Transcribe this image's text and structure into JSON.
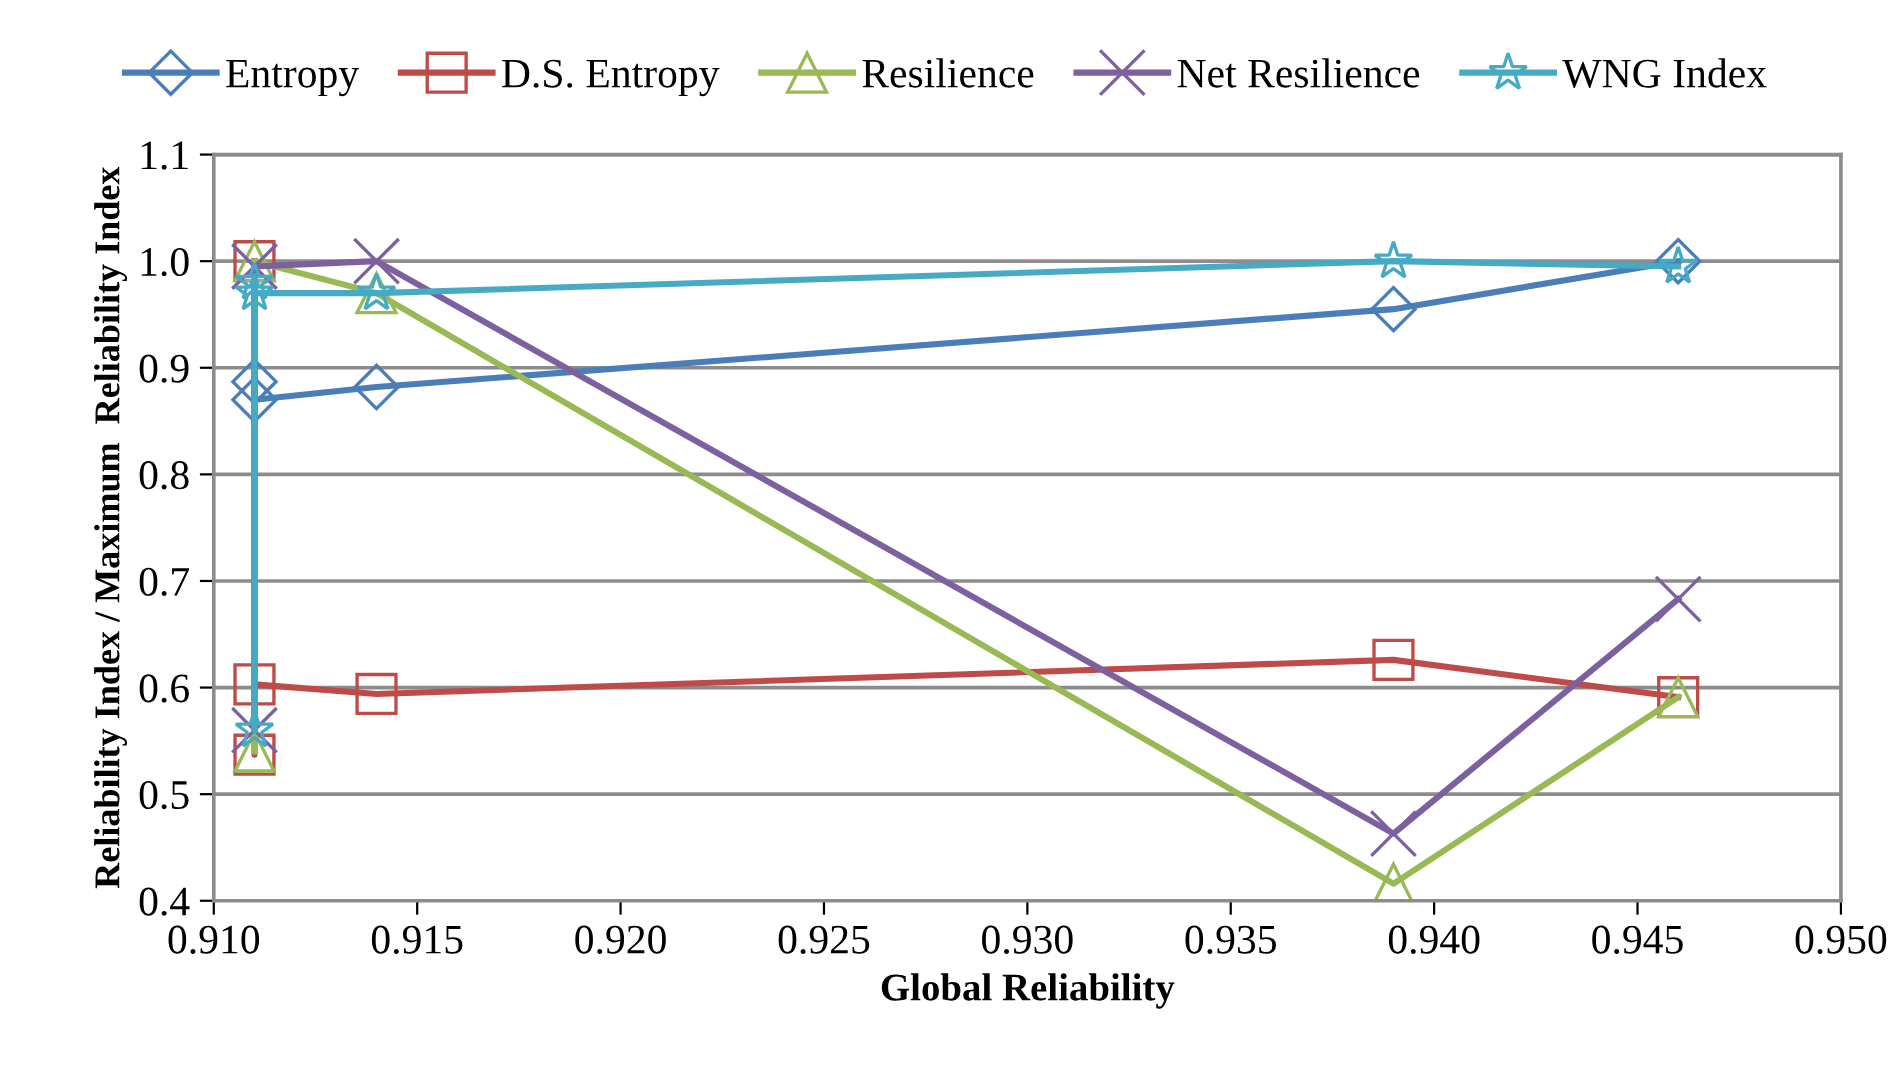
{
  "chart_data": {
    "type": "line",
    "xlabel": "Global Reliability",
    "ylabel": "Reliability Index / Maximum  Reliability Index",
    "xlim": [
      0.91,
      0.95
    ],
    "xticks": [
      {
        "value": 0.91,
        "label": "0.910"
      },
      {
        "value": 0.915,
        "label": "0.915"
      },
      {
        "value": 0.92,
        "label": "0.920"
      },
      {
        "value": 0.925,
        "label": "0.925"
      },
      {
        "value": 0.93,
        "label": "0.930"
      },
      {
        "value": 0.935,
        "label": "0.935"
      },
      {
        "value": 0.94,
        "label": "0.940"
      },
      {
        "value": 0.945,
        "label": "0.945"
      },
      {
        "value": 0.95,
        "label": "0.950"
      }
    ],
    "ylim": [
      0.4,
      1.1
    ],
    "yticks": [
      {
        "value": 0.4,
        "label": "0.4"
      },
      {
        "value": 0.5,
        "label": "0.5"
      },
      {
        "value": 0.6,
        "label": "0.6"
      },
      {
        "value": 0.7,
        "label": "0.7"
      },
      {
        "value": 0.8,
        "label": "0.8"
      },
      {
        "value": 0.9,
        "label": "0.9"
      },
      {
        "value": 1.0,
        "label": "1.0"
      },
      {
        "value": 1.1,
        "label": "1.1"
      }
    ],
    "grid": "y",
    "legend": "top",
    "series": [
      {
        "name": "Entropy",
        "color": "#4a7ebb",
        "marker": "diamond",
        "x": [
          0.911,
          0.911,
          0.914,
          0.939,
          0.946
        ],
        "values": [
          0.887,
          0.87,
          0.882,
          0.955,
          1.0
        ]
      },
      {
        "name": "D.S. Entropy",
        "color": "#be4b48",
        "marker": "square",
        "x": [
          0.911,
          0.911,
          0.911,
          0.914,
          0.939,
          0.946
        ],
        "values": [
          1.0,
          0.537,
          0.603,
          0.594,
          0.626,
          0.591
        ]
      },
      {
        "name": "Resilience",
        "color": "#98b954",
        "marker": "triangle",
        "x": [
          0.911,
          0.911,
          0.914,
          0.939,
          0.946
        ],
        "values": [
          0.54,
          1.0,
          0.97,
          0.416,
          0.591
        ]
      },
      {
        "name": "Net Resilience",
        "color": "#7d60a0",
        "marker": "cross",
        "x": [
          0.911,
          0.911,
          0.914,
          0.939,
          0.946
        ],
        "values": [
          0.56,
          0.995,
          1.0,
          0.463,
          0.683
        ]
      },
      {
        "name": "WNG Index",
        "color": "#46aac5",
        "marker": "star",
        "x": [
          0.911,
          0.911,
          0.911,
          0.914,
          0.939,
          0.946
        ],
        "values": [
          0.56,
          0.98,
          0.97,
          0.97,
          1.0,
          0.995
        ]
      }
    ]
  }
}
